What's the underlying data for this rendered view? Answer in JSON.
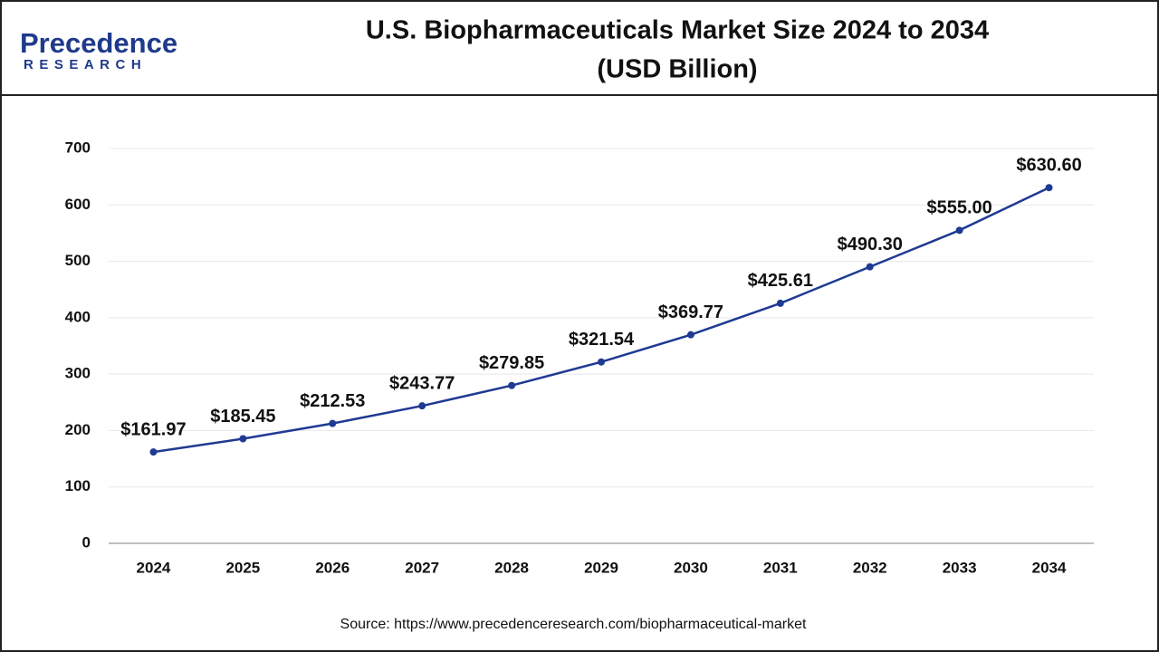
{
  "logo": {
    "name": "Precedence",
    "tagline": "RESEARCH"
  },
  "chart_data": {
    "type": "line",
    "title": "U.S. Biopharmaceuticals Market Size 2024 to 2034",
    "subtitle": "(USD Billion)",
    "categories": [
      "2024",
      "2025",
      "2026",
      "2027",
      "2028",
      "2029",
      "2030",
      "2031",
      "2032",
      "2033",
      "2034"
    ],
    "values": [
      161.97,
      185.45,
      212.53,
      243.77,
      279.85,
      321.54,
      369.77,
      425.61,
      490.3,
      555.0,
      630.6
    ],
    "value_labels": [
      "$161.97",
      "$185.45",
      "$212.53",
      "$243.77",
      "$279.85",
      "$321.54",
      "$369.77",
      "$425.61",
      "$490.30",
      "$555.00",
      "$630.60"
    ],
    "color": "#1f3a93",
    "ylim": [
      0,
      700
    ],
    "yticks": [
      0,
      100,
      200,
      300,
      400,
      500,
      600,
      700
    ],
    "grid": true,
    "source": "Source: https://www.precedenceresearch.com/biopharmaceutical-market"
  }
}
